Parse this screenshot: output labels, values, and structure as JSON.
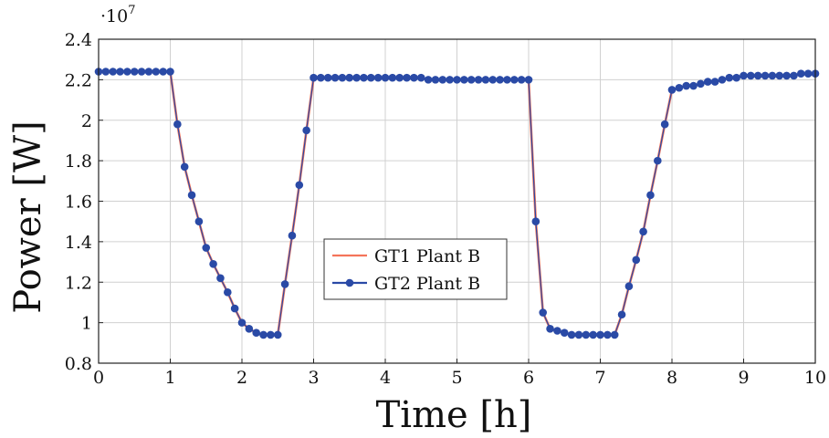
{
  "chart_data": {
    "type": "line",
    "xlabel": "Time [h]",
    "ylabel": "Power [W]",
    "y_multiplier_label": "·10",
    "y_multiplier_exponent": "7",
    "xlim": [
      0,
      10
    ],
    "ylim": [
      0.8,
      2.4
    ],
    "x_ticks": [
      0,
      1,
      2,
      3,
      4,
      5,
      6,
      7,
      8,
      9,
      10
    ],
    "x_tick_labels": [
      "0",
      "1",
      "2",
      "3",
      "4",
      "5",
      "6",
      "7",
      "8",
      "9",
      "10"
    ],
    "y_ticks": [
      0.8,
      1.0,
      1.2,
      1.4,
      1.6,
      1.8,
      2.0,
      2.2,
      2.4
    ],
    "y_tick_labels": [
      "0.8",
      "1",
      "1.2",
      "1.4",
      "1.6",
      "1.8",
      "2",
      "2.2",
      "2.4"
    ],
    "grid": true,
    "legend_position": "center",
    "colors": {
      "gt1": "#f4745a",
      "gt2": "#2a4aa6"
    },
    "x": [
      0,
      0.1,
      0.2,
      0.3,
      0.4,
      0.5,
      0.6,
      0.7,
      0.8,
      0.9,
      1.0,
      1.1,
      1.2,
      1.3,
      1.4,
      1.5,
      1.6,
      1.7,
      1.8,
      1.9,
      2.0,
      2.1,
      2.2,
      2.3,
      2.4,
      2.5,
      2.6,
      2.7,
      2.8,
      2.9,
      3.0,
      3.1,
      3.2,
      3.3,
      3.4,
      3.5,
      3.6,
      3.7,
      3.8,
      3.9,
      4.0,
      4.1,
      4.2,
      4.3,
      4.4,
      4.5,
      4.6,
      4.7,
      4.8,
      4.9,
      5.0,
      5.1,
      5.2,
      5.3,
      5.4,
      5.5,
      5.6,
      5.7,
      5.8,
      5.9,
      6.0,
      6.1,
      6.2,
      6.3,
      6.4,
      6.5,
      6.6,
      6.7,
      6.8,
      6.9,
      7.0,
      7.1,
      7.2,
      7.3,
      7.4,
      7.5,
      7.6,
      7.7,
      7.8,
      7.9,
      8.0,
      8.1,
      8.2,
      8.3,
      8.4,
      8.5,
      8.6,
      8.7,
      8.8,
      8.9,
      9.0,
      9.1,
      9.2,
      9.3,
      9.4,
      9.5,
      9.6,
      9.7,
      9.8,
      9.9,
      10.0
    ],
    "series": [
      {
        "name": "GT1 Plant B",
        "style": "line",
        "values": [
          2.24,
          2.24,
          2.24,
          2.24,
          2.24,
          2.24,
          2.24,
          2.24,
          2.24,
          2.24,
          2.24,
          1.98,
          1.77,
          1.63,
          1.5,
          1.37,
          1.29,
          1.22,
          1.15,
          1.07,
          1.0,
          0.97,
          0.95,
          0.94,
          0.94,
          0.94,
          1.19,
          1.43,
          1.68,
          1.95,
          2.21,
          2.21,
          2.21,
          2.21,
          2.21,
          2.21,
          2.21,
          2.21,
          2.21,
          2.21,
          2.21,
          2.21,
          2.21,
          2.21,
          2.21,
          2.21,
          2.2,
          2.2,
          2.2,
          2.2,
          2.2,
          2.2,
          2.2,
          2.2,
          2.2,
          2.2,
          2.2,
          2.2,
          2.2,
          2.2,
          2.2,
          1.5,
          1.05,
          0.97,
          0.96,
          0.95,
          0.94,
          0.94,
          0.94,
          0.94,
          0.94,
          0.94,
          0.94,
          1.04,
          1.18,
          1.31,
          1.45,
          1.63,
          1.8,
          1.98,
          2.15,
          2.16,
          2.17,
          2.17,
          2.18,
          2.19,
          2.19,
          2.2,
          2.21,
          2.21,
          2.22,
          2.22,
          2.22,
          2.22,
          2.22,
          2.22,
          2.22,
          2.22,
          2.23,
          2.23,
          2.23
        ]
      },
      {
        "name": "GT2 Plant B",
        "style": "line-markers",
        "values": [
          2.24,
          2.24,
          2.24,
          2.24,
          2.24,
          2.24,
          2.24,
          2.24,
          2.24,
          2.24,
          2.24,
          1.98,
          1.77,
          1.63,
          1.5,
          1.37,
          1.29,
          1.22,
          1.15,
          1.07,
          1.0,
          0.97,
          0.95,
          0.94,
          0.94,
          0.94,
          1.19,
          1.43,
          1.68,
          1.95,
          2.21,
          2.21,
          2.21,
          2.21,
          2.21,
          2.21,
          2.21,
          2.21,
          2.21,
          2.21,
          2.21,
          2.21,
          2.21,
          2.21,
          2.21,
          2.21,
          2.2,
          2.2,
          2.2,
          2.2,
          2.2,
          2.2,
          2.2,
          2.2,
          2.2,
          2.2,
          2.2,
          2.2,
          2.2,
          2.2,
          2.2,
          1.5,
          1.05,
          0.97,
          0.96,
          0.95,
          0.94,
          0.94,
          0.94,
          0.94,
          0.94,
          0.94,
          0.94,
          1.04,
          1.18,
          1.31,
          1.45,
          1.63,
          1.8,
          1.98,
          2.15,
          2.16,
          2.17,
          2.17,
          2.18,
          2.19,
          2.19,
          2.2,
          2.21,
          2.21,
          2.22,
          2.22,
          2.22,
          2.22,
          2.22,
          2.22,
          2.22,
          2.22,
          2.23,
          2.23,
          2.23
        ]
      }
    ]
  }
}
